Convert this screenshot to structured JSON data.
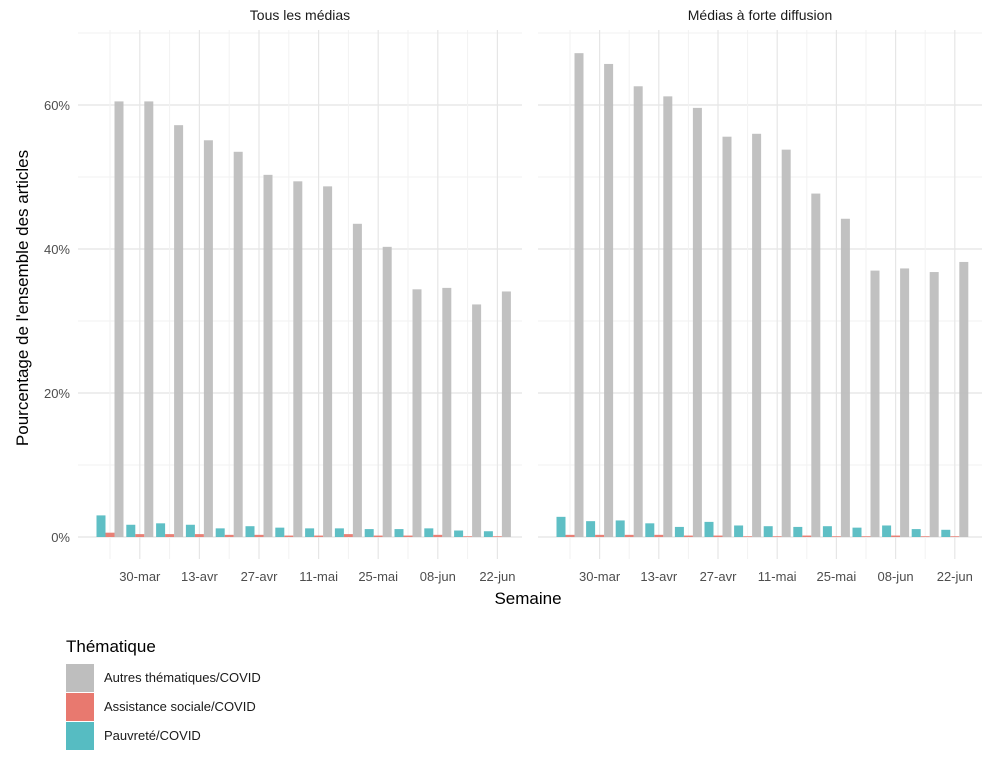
{
  "chart_data": {
    "type": "bar",
    "y_axis_label": "Pourcentage de l'ensemble des articles",
    "x_axis_label": "Semaine",
    "ylim": [
      0,
      70
    ],
    "y_ticks": [
      0,
      20,
      40,
      60
    ],
    "y_tick_labels": [
      "0%",
      "20%",
      "40%",
      "60%"
    ],
    "grid": true,
    "legend": {
      "title": "Thématique",
      "position": "bottom-left",
      "entries": [
        "Autres thématiques/COVID",
        "Assistance sociale/COVID",
        "Pauvreté/COVID"
      ]
    },
    "colors": {
      "autres": "#bebebe",
      "assistance": "#e8796f",
      "pauvrete": "#56bcc2"
    },
    "weeks": 14,
    "x_tick_labels": [
      "30-mar",
      "13-avr",
      "27-avr",
      "11-mai",
      "25-mai",
      "08-jun",
      "22-jun"
    ],
    "x_tick_week_index": [
      1,
      3,
      5,
      7,
      9,
      11,
      13
    ],
    "facets": [
      {
        "title": "Tous les médias",
        "series": [
          {
            "name": "Pauvreté/COVID",
            "key": "pauvrete",
            "values": [
              3.0,
              1.7,
              1.9,
              1.7,
              1.2,
              1.5,
              1.3,
              1.2,
              1.2,
              1.1,
              1.1,
              1.2,
              0.9,
              0.8
            ]
          },
          {
            "name": "Assistance sociale/COVID",
            "key": "assistance",
            "values": [
              0.6,
              0.4,
              0.4,
              0.4,
              0.3,
              0.3,
              0.2,
              0.2,
              0.4,
              0.2,
              0.2,
              0.3,
              0.1,
              0.1
            ]
          },
          {
            "name": "Autres thématiques/COVID",
            "key": "autres",
            "values": [
              60.5,
              60.5,
              57.2,
              55.1,
              53.5,
              50.3,
              49.4,
              48.7,
              43.5,
              40.3,
              34.4,
              34.6,
              32.3,
              34.1
            ]
          }
        ]
      },
      {
        "title": "Médias à forte diffusion",
        "series": [
          {
            "name": "Pauvreté/COVID",
            "key": "pauvrete",
            "values": [
              2.8,
              2.2,
              2.3,
              1.9,
              1.4,
              2.1,
              1.6,
              1.5,
              1.4,
              1.5,
              1.3,
              1.6,
              1.1,
              1.0
            ]
          },
          {
            "name": "Assistance sociale/COVID",
            "key": "assistance",
            "values": [
              0.3,
              0.3,
              0.3,
              0.3,
              0.2,
              0.2,
              0.1,
              0.1,
              0.2,
              0.1,
              0.1,
              0.2,
              0.1,
              0.1
            ]
          },
          {
            "name": "Autres thématiques/COVID",
            "key": "autres",
            "values": [
              67.2,
              65.7,
              62.6,
              61.2,
              59.6,
              55.6,
              56.0,
              53.8,
              47.7,
              44.2,
              37.0,
              37.3,
              36.8,
              38.2
            ]
          }
        ]
      }
    ]
  }
}
